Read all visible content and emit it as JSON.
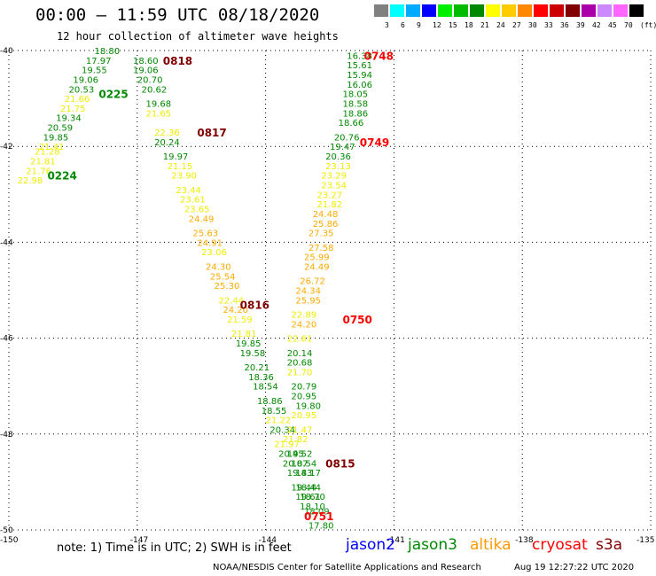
{
  "header": {
    "title": "00:00 – 11:59 UTC 08/18/2020",
    "subtitle": "12 hour collection of altimeter wave heights"
  },
  "scale": {
    "labels": [
      "3",
      "6",
      "9",
      "12",
      "15",
      "18",
      "21",
      "24",
      "27",
      "30",
      "33",
      "36",
      "39",
      "42",
      "45",
      "70",
      "(ft)"
    ],
    "colors": [
      "#808080",
      "#00ffff",
      "#00aaff",
      "#0000ff",
      "#00ee00",
      "#00bb00",
      "#008800",
      "#ffff00",
      "#ffcc00",
      "#ff8800",
      "#ff0000",
      "#cc0000",
      "#800000",
      "#aa00aa",
      "#cc88ff",
      "#ff66ff",
      "#000000"
    ]
  },
  "axes": {
    "lat_labels": [
      "-40",
      "-42",
      "-44",
      "-46",
      "-48",
      "-50"
    ],
    "lon_labels": [
      "-150",
      "-147",
      "-144",
      "-141",
      "-138",
      "-135"
    ]
  },
  "chart_data": {
    "type": "scatter",
    "x_range": [
      -150,
      -135
    ],
    "y_range": [
      -50,
      -40
    ],
    "value_colors": {
      "green": "#008800",
      "yellow": "#eeee00",
      "orange": "#ffaa00",
      "red": "#ff0000"
    },
    "track_markers": [
      {
        "label": "0818",
        "lon": -146.4,
        "lat": -40.2,
        "color": "#800000"
      },
      {
        "label": "0225",
        "lon": -147.9,
        "lat": -40.9,
        "color": "#008800"
      },
      {
        "label": "0817",
        "lon": -145.6,
        "lat": -41.7,
        "color": "#800000"
      },
      {
        "label": "0224",
        "lon": -149.1,
        "lat": -42.6,
        "color": "#008800"
      },
      {
        "label": "0748",
        "lon": -141.7,
        "lat": -40.1,
        "color": "#ff0000"
      },
      {
        "label": "0749",
        "lon": -141.8,
        "lat": -41.9,
        "color": "#ff0000"
      },
      {
        "label": "0816",
        "lon": -144.6,
        "lat": -45.3,
        "color": "#800000"
      },
      {
        "label": "0750",
        "lon": -142.2,
        "lat": -45.6,
        "color": "#ff0000"
      },
      {
        "label": "0815",
        "lon": -142.6,
        "lat": -48.6,
        "color": "#800000"
      },
      {
        "label": "0751",
        "lon": -143.1,
        "lat": -49.7,
        "color": "#ff0000"
      }
    ],
    "tracks": [
      {
        "name": "",
        "points": [
          {
            "lon": -148.0,
            "lat": -40.0,
            "value": "18.80",
            "color": "green"
          },
          {
            "lon": -148.2,
            "lat": -40.2,
            "value": "17.97",
            "color": "green"
          },
          {
            "lon": -148.3,
            "lat": -40.4,
            "value": "19.55",
            "color": "green"
          },
          {
            "lon": -148.5,
            "lat": -40.6,
            "value": "19.06",
            "color": "green"
          },
          {
            "lon": -148.6,
            "lat": -40.8,
            "value": "20.53",
            "color": "green"
          },
          {
            "lon": -148.7,
            "lat": -41.0,
            "value": "21.66",
            "color": "yellow"
          },
          {
            "lon": -148.8,
            "lat": -41.2,
            "value": "21.75",
            "color": "yellow"
          },
          {
            "lon": -148.9,
            "lat": -41.4,
            "value": "19.34",
            "color": "green"
          },
          {
            "lon": -149.1,
            "lat": -41.6,
            "value": "20.59",
            "color": "green"
          },
          {
            "lon": -149.2,
            "lat": -41.8,
            "value": "19.85",
            "color": "green"
          },
          {
            "lon": -149.3,
            "lat": -42.0,
            "value": "21.41",
            "color": "yellow"
          },
          {
            "lon": -149.4,
            "lat": -42.1,
            "value": "21.28",
            "color": "yellow"
          },
          {
            "lon": -149.5,
            "lat": -42.3,
            "value": "21.81",
            "color": "yellow"
          },
          {
            "lon": -149.6,
            "lat": -42.5,
            "value": "21.76",
            "color": "yellow"
          },
          {
            "lon": -149.8,
            "lat": -42.7,
            "value": "22.98",
            "color": "yellow"
          }
        ]
      },
      {
        "name": "",
        "points": [
          {
            "lon": -147.1,
            "lat": -40.2,
            "value": "18.60",
            "color": "green"
          },
          {
            "lon": -147.1,
            "lat": -40.4,
            "value": "19.06",
            "color": "green"
          },
          {
            "lon": -147.0,
            "lat": -40.6,
            "value": "20.70",
            "color": "green"
          },
          {
            "lon": -146.9,
            "lat": -40.8,
            "value": "20.62",
            "color": "green"
          },
          {
            "lon": -146.8,
            "lat": -41.1,
            "value": "19.68",
            "color": "green"
          },
          {
            "lon": -146.8,
            "lat": -41.3,
            "value": "21.65",
            "color": "yellow"
          },
          {
            "lon": -146.6,
            "lat": -41.7,
            "value": "22.36",
            "color": "yellow"
          },
          {
            "lon": -146.6,
            "lat": -41.9,
            "value": "20.24",
            "color": "green"
          },
          {
            "lon": -146.4,
            "lat": -42.2,
            "value": "19.97",
            "color": "green"
          },
          {
            "lon": -146.3,
            "lat": -42.4,
            "value": "21.15",
            "color": "yellow"
          },
          {
            "lon": -146.2,
            "lat": -42.6,
            "value": "23.90",
            "color": "yellow"
          },
          {
            "lon": -146.1,
            "lat": -42.9,
            "value": "23.44",
            "color": "yellow"
          },
          {
            "lon": -146.0,
            "lat": -43.1,
            "value": "23.61",
            "color": "yellow"
          },
          {
            "lon": -145.9,
            "lat": -43.3,
            "value": "23.65",
            "color": "yellow"
          },
          {
            "lon": -145.8,
            "lat": -43.5,
            "value": "24.49",
            "color": "orange"
          },
          {
            "lon": -145.7,
            "lat": -43.8,
            "value": "25.63",
            "color": "orange"
          },
          {
            "lon": -145.6,
            "lat": -44.0,
            "value": "24.91",
            "color": "orange"
          },
          {
            "lon": -145.5,
            "lat": -44.2,
            "value": "23.06",
            "color": "yellow"
          },
          {
            "lon": -145.4,
            "lat": -44.5,
            "value": "24.30",
            "color": "orange"
          },
          {
            "lon": -145.3,
            "lat": -44.7,
            "value": "25.54",
            "color": "orange"
          },
          {
            "lon": -145.2,
            "lat": -44.9,
            "value": "25.30",
            "color": "orange"
          },
          {
            "lon": -145.1,
            "lat": -45.2,
            "value": "22.44",
            "color": "yellow"
          },
          {
            "lon": -145.0,
            "lat": -45.4,
            "value": "24.20",
            "color": "orange"
          },
          {
            "lon": -144.9,
            "lat": -45.6,
            "value": "21.59",
            "color": "yellow"
          },
          {
            "lon": -144.8,
            "lat": -45.9,
            "value": "21.81",
            "color": "yellow"
          },
          {
            "lon": -144.7,
            "lat": -46.1,
            "value": "19.85",
            "color": "green"
          },
          {
            "lon": -144.6,
            "lat": -46.3,
            "value": "19.58",
            "color": "green"
          },
          {
            "lon": -144.5,
            "lat": -46.6,
            "value": "20.21",
            "color": "green"
          },
          {
            "lon": -144.4,
            "lat": -46.8,
            "value": "18.36",
            "color": "green"
          },
          {
            "lon": -144.3,
            "lat": -47.0,
            "value": "18.54",
            "color": "green"
          },
          {
            "lon": -144.2,
            "lat": -47.3,
            "value": "18.86",
            "color": "green"
          },
          {
            "lon": -144.1,
            "lat": -47.5,
            "value": "18.55",
            "color": "green"
          },
          {
            "lon": -144.0,
            "lat": -47.7,
            "value": "21.22",
            "color": "yellow"
          },
          {
            "lon": -143.9,
            "lat": -47.9,
            "value": "20.34",
            "color": "green"
          },
          {
            "lon": -143.8,
            "lat": -48.2,
            "value": "21.97",
            "color": "yellow"
          },
          {
            "lon": -143.7,
            "lat": -48.4,
            "value": "20.45",
            "color": "green"
          },
          {
            "lon": -143.6,
            "lat": -48.6,
            "value": "20.07",
            "color": "green"
          },
          {
            "lon": -143.5,
            "lat": -48.8,
            "value": "19.43",
            "color": "green"
          },
          {
            "lon": -143.4,
            "lat": -49.1,
            "value": "19.44",
            "color": "green"
          },
          {
            "lon": -143.3,
            "lat": -49.3,
            "value": "19.61",
            "color": "green"
          },
          {
            "lon": -143.2,
            "lat": -49.5,
            "value": "18.10",
            "color": "green"
          }
        ]
      },
      {
        "name": "",
        "points": [
          {
            "lon": -142.1,
            "lat": -40.1,
            "value": "16.38",
            "color": "green"
          },
          {
            "lon": -142.1,
            "lat": -40.3,
            "value": "15.61",
            "color": "green"
          },
          {
            "lon": -142.1,
            "lat": -40.5,
            "value": "15.94",
            "color": "green"
          },
          {
            "lon": -142.1,
            "lat": -40.7,
            "value": "16.06",
            "color": "green"
          },
          {
            "lon": -142.2,
            "lat": -40.9,
            "value": "18.05",
            "color": "green"
          },
          {
            "lon": -142.2,
            "lat": -41.1,
            "value": "18.58",
            "color": "green"
          },
          {
            "lon": -142.2,
            "lat": -41.3,
            "value": "18.86",
            "color": "green"
          },
          {
            "lon": -142.3,
            "lat": -41.5,
            "value": "18.66",
            "color": "green"
          },
          {
            "lon": -142.4,
            "lat": -41.8,
            "value": "20.76",
            "color": "green"
          },
          {
            "lon": -142.5,
            "lat": -42.0,
            "value": "19.47",
            "color": "green"
          },
          {
            "lon": -142.6,
            "lat": -42.2,
            "value": "20.36",
            "color": "green"
          },
          {
            "lon": -142.6,
            "lat": -42.4,
            "value": "23.13",
            "color": "yellow"
          },
          {
            "lon": -142.7,
            "lat": -42.6,
            "value": "23.29",
            "color": "yellow"
          },
          {
            "lon": -142.7,
            "lat": -42.8,
            "value": "23.54",
            "color": "yellow"
          },
          {
            "lon": -142.8,
            "lat": -43.0,
            "value": "23.27",
            "color": "yellow"
          },
          {
            "lon": -142.8,
            "lat": -43.2,
            "value": "21.82",
            "color": "yellow"
          },
          {
            "lon": -142.9,
            "lat": -43.4,
            "value": "24.48",
            "color": "orange"
          },
          {
            "lon": -142.9,
            "lat": -43.6,
            "value": "25.86",
            "color": "orange"
          },
          {
            "lon": -143.0,
            "lat": -43.8,
            "value": "27.35",
            "color": "orange"
          },
          {
            "lon": -143.0,
            "lat": -44.1,
            "value": "27.58",
            "color": "orange"
          },
          {
            "lon": -143.1,
            "lat": -44.3,
            "value": "25.99",
            "color": "orange"
          },
          {
            "lon": -143.1,
            "lat": -44.5,
            "value": "24.49",
            "color": "orange"
          },
          {
            "lon": -143.2,
            "lat": -44.8,
            "value": "26.72",
            "color": "orange"
          },
          {
            "lon": -143.3,
            "lat": -45.0,
            "value": "24.34",
            "color": "orange"
          },
          {
            "lon": -143.3,
            "lat": -45.2,
            "value": "25.95",
            "color": "orange"
          },
          {
            "lon": -143.4,
            "lat": -45.5,
            "value": "22.89",
            "color": "yellow"
          },
          {
            "lon": -143.4,
            "lat": -45.7,
            "value": "24.20",
            "color": "orange"
          },
          {
            "lon": -143.5,
            "lat": -46.0,
            "value": "22.61",
            "color": "yellow"
          },
          {
            "lon": -143.5,
            "lat": -46.3,
            "value": "20.14",
            "color": "green"
          },
          {
            "lon": -143.5,
            "lat": -46.5,
            "value": "20.68",
            "color": "green"
          },
          {
            "lon": -143.5,
            "lat": -46.7,
            "value": "21.70",
            "color": "yellow"
          },
          {
            "lon": -143.4,
            "lat": -47.0,
            "value": "20.79",
            "color": "green"
          },
          {
            "lon": -143.4,
            "lat": -47.2,
            "value": "20.95",
            "color": "green"
          },
          {
            "lon": -143.3,
            "lat": -47.4,
            "value": "19.80",
            "color": "green"
          },
          {
            "lon": -143.4,
            "lat": -47.6,
            "value": "20.95",
            "color": "yellow"
          },
          {
            "lon": -143.5,
            "lat": -47.9,
            "value": "21.47",
            "color": "yellow"
          },
          {
            "lon": -143.6,
            "lat": -48.1,
            "value": "21.82",
            "color": "yellow"
          },
          {
            "lon": -143.5,
            "lat": -48.4,
            "value": "19.52",
            "color": "green"
          },
          {
            "lon": -143.4,
            "lat": -48.6,
            "value": "18.54",
            "color": "green"
          },
          {
            "lon": -143.3,
            "lat": -48.8,
            "value": "18.17",
            "color": "green"
          },
          {
            "lon": -143.3,
            "lat": -49.1,
            "value": "18.44",
            "color": "green"
          },
          {
            "lon": -143.2,
            "lat": -49.3,
            "value": "18.70",
            "color": "green"
          },
          {
            "lon": -143.1,
            "lat": -49.6,
            "value": "18.09",
            "color": "green"
          },
          {
            "lon": -143.0,
            "lat": -49.9,
            "value": "17.80",
            "color": "green"
          }
        ]
      }
    ]
  },
  "footer": {
    "note": "note: 1) Time is in UTC; 2) SWH is in feet",
    "satellites": [
      {
        "label": "jason2",
        "color": "#0000ff"
      },
      {
        "label": "jason3",
        "color": "#008800"
      },
      {
        "label": "altika",
        "color": "#ff9900"
      },
      {
        "label": "cryosat",
        "color": "#ff0000"
      },
      {
        "label": "s3a",
        "color": "#800000"
      }
    ],
    "credit": "NOAA/NESDIS Center for Satellite Applications and Research",
    "timestamp": "Aug 19 12:27:22 UTC 2020"
  }
}
